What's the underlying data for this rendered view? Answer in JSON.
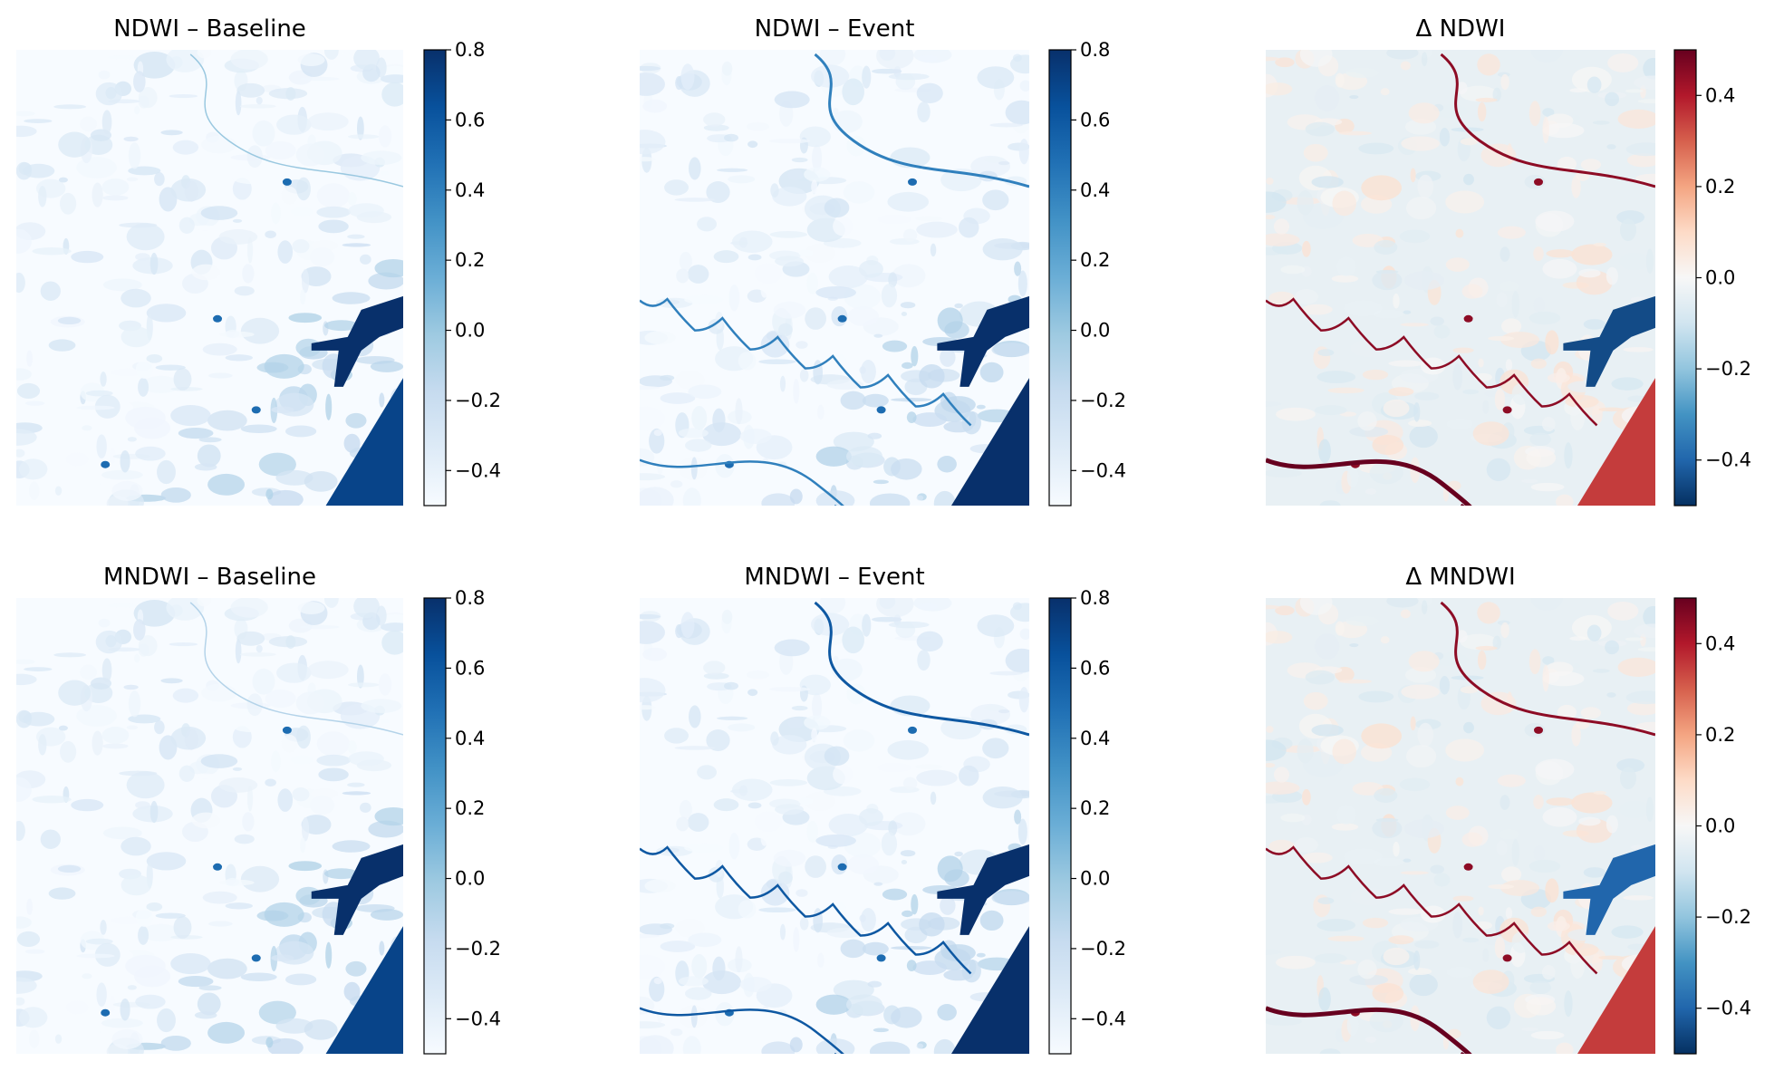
{
  "chart_data": [
    {
      "type": "heatmap",
      "title": "NDWI – Baseline",
      "colormap": "Blues",
      "colorbar": {
        "range": [
          -0.5,
          0.8
        ],
        "ticks": [
          -0.4,
          -0.2,
          0.0,
          0.2,
          0.4,
          0.6,
          0.8
        ],
        "tick_labels": [
          "−0.4",
          "−0.2",
          "0.0",
          "0.2",
          "0.4",
          "0.6",
          "0.8"
        ]
      },
      "axes_visible": false,
      "features": {
        "meander_rivers": false,
        "river_strength": 0.25,
        "lake_level": 0.8,
        "coast_level": 0.7
      }
    },
    {
      "type": "heatmap",
      "title": "NDWI – Event",
      "colormap": "Blues",
      "colorbar": {
        "range": [
          -0.5,
          0.8
        ],
        "ticks": [
          -0.4,
          -0.2,
          0.0,
          0.2,
          0.4,
          0.6,
          0.8
        ],
        "tick_labels": [
          "−0.4",
          "−0.2",
          "0.0",
          "0.2",
          "0.4",
          "0.6",
          "0.8"
        ]
      },
      "axes_visible": false,
      "features": {
        "meander_rivers": true,
        "river_strength": 0.45,
        "lake_level": 0.8,
        "coast_level": 0.8
      }
    },
    {
      "type": "heatmap",
      "title": "Δ NDWI",
      "colormap": "RdBu_r",
      "colorbar": {
        "range": [
          -0.5,
          0.5
        ],
        "ticks": [
          -0.4,
          -0.2,
          0.0,
          0.2,
          0.4
        ],
        "tick_labels": [
          "−0.4",
          "−0.2",
          "0.0",
          "0.2",
          "0.4"
        ]
      },
      "axes_visible": false,
      "features": {
        "meander_rivers": true,
        "river_strength": 0.45,
        "lake_level": -0.45,
        "coast_level": 0.35
      }
    },
    {
      "type": "heatmap",
      "title": "MNDWI – Baseline",
      "colormap": "Blues",
      "colorbar": {
        "range": [
          -0.5,
          0.8
        ],
        "ticks": [
          -0.4,
          -0.2,
          0.0,
          0.2,
          0.4,
          0.6,
          0.8
        ],
        "tick_labels": [
          "−0.4",
          "−0.2",
          "0.0",
          "0.2",
          "0.4",
          "0.6",
          "0.8"
        ]
      },
      "axes_visible": false,
      "features": {
        "meander_rivers": false,
        "river_strength": 0.2,
        "lake_level": 0.8,
        "coast_level": 0.7
      }
    },
    {
      "type": "heatmap",
      "title": "MNDWI – Event",
      "colormap": "Blues",
      "colorbar": {
        "range": [
          -0.5,
          0.8
        ],
        "ticks": [
          -0.4,
          -0.2,
          0.0,
          0.2,
          0.4,
          0.6,
          0.8
        ],
        "tick_labels": [
          "−0.4",
          "−0.2",
          "0.0",
          "0.2",
          "0.4",
          "0.6",
          "0.8"
        ]
      },
      "axes_visible": false,
      "features": {
        "meander_rivers": true,
        "river_strength": 0.55,
        "lake_level": 0.8,
        "coast_level": 0.8
      }
    },
    {
      "type": "heatmap",
      "title": "Δ MNDWI",
      "colormap": "RdBu_r",
      "colorbar": {
        "range": [
          -0.5,
          0.5
        ],
        "ticks": [
          -0.4,
          -0.2,
          0.0,
          0.2,
          0.4
        ],
        "tick_labels": [
          "−0.4",
          "−0.2",
          "0.0",
          "0.2",
          "0.4"
        ]
      },
      "axes_visible": false,
      "features": {
        "meander_rivers": true,
        "river_strength": 0.45,
        "lake_level": -0.4,
        "coast_level": 0.35
      }
    }
  ],
  "colors": {
    "blues": [
      "#f7fbff",
      "#deebf7",
      "#c6dbef",
      "#9ecae1",
      "#6baed6",
      "#4292c6",
      "#2171b5",
      "#08519c",
      "#08306b"
    ],
    "rdbu_r": [
      "#053061",
      "#2166ac",
      "#4393c3",
      "#92c5de",
      "#d1e5f0",
      "#f7f7f7",
      "#fddbc7",
      "#f4a582",
      "#d6604d",
      "#b2182b",
      "#67001f"
    ]
  }
}
